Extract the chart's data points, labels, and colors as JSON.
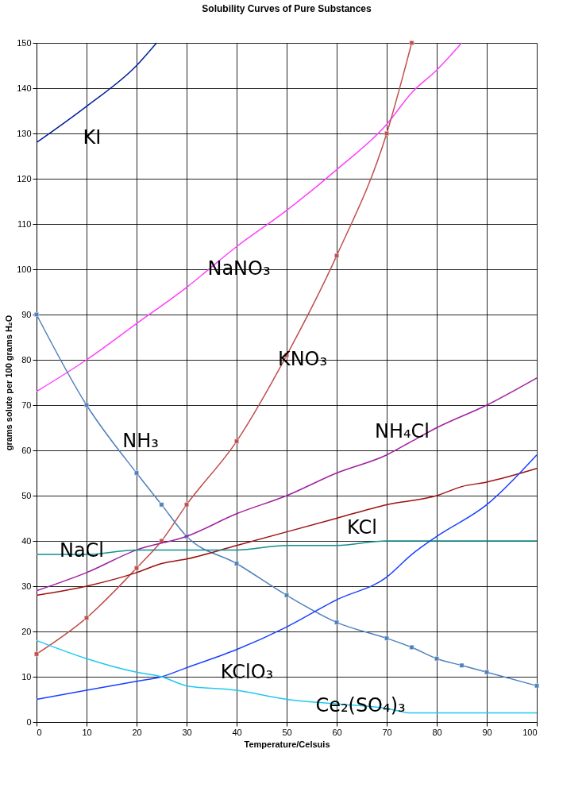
{
  "chart_data": {
    "type": "line",
    "title": "Solubility Curves of Pure Substances",
    "xlabel": "Temperature/Celsuis",
    "ylabel": "grams solute per 100 grams H₂O",
    "xlim": [
      0,
      100
    ],
    "xticks": [
      0,
      10,
      20,
      30,
      40,
      50,
      60,
      70,
      80,
      90,
      100
    ],
    "ylim": [
      0,
      150
    ],
    "yticks": [
      0,
      10,
      20,
      30,
      40,
      50,
      60,
      70,
      80,
      90,
      100,
      110,
      120,
      130,
      140,
      150
    ],
    "grid": true,
    "line_style": "solid",
    "series": [
      {
        "name": "KI",
        "color": "#00209f",
        "marker": "none",
        "x": [
          0,
          10,
          20,
          24
        ],
        "values": [
          128,
          136,
          145,
          150
        ]
      },
      {
        "name": "NaNO₃",
        "color": "#ff40ff",
        "marker": "none",
        "x": [
          0,
          10,
          20,
          30,
          40,
          50,
          60,
          70,
          75,
          80,
          85
        ],
        "values": [
          73,
          80,
          88,
          96,
          105,
          113,
          122,
          132,
          139,
          144,
          150
        ]
      },
      {
        "name": "KNO₃",
        "color": "#c0504d",
        "marker": "square",
        "x": [
          0,
          10,
          20,
          25,
          30,
          40,
          50,
          60,
          70,
          75
        ],
        "values": [
          15,
          23,
          34,
          40,
          48,
          62,
          81,
          103,
          130,
          150
        ]
      },
      {
        "name": "NH₃",
        "color": "#4f81bd",
        "marker": "square",
        "x": [
          0,
          10,
          20,
          25,
          30,
          40,
          50,
          60,
          70,
          75,
          80,
          85,
          90,
          100
        ],
        "values": [
          90,
          70,
          55,
          48,
          41,
          35,
          28,
          22,
          18.5,
          16.5,
          14,
          12.5,
          11,
          8
        ]
      },
      {
        "name": "NH₄Cl",
        "color": "#a020a0",
        "marker": "none",
        "x": [
          0,
          10,
          20,
          30,
          40,
          50,
          60,
          70,
          75,
          80,
          90,
          100
        ],
        "values": [
          29,
          33,
          38,
          41,
          46,
          50,
          55,
          59,
          62,
          65,
          70,
          76
        ]
      },
      {
        "name": "KCl",
        "color": "#a01010",
        "marker": "none",
        "x": [
          0,
          10,
          20,
          25,
          30,
          40,
          50,
          60,
          70,
          80,
          85,
          90,
          100
        ],
        "values": [
          28,
          30,
          33,
          35,
          36,
          39,
          42,
          45,
          48,
          50,
          52,
          53,
          56
        ]
      },
      {
        "name": "NaCl",
        "color": "#10908f",
        "marker": "none",
        "x": [
          0,
          10,
          20,
          30,
          40,
          50,
          60,
          70,
          80,
          90,
          100
        ],
        "values": [
          37,
          37,
          38,
          38,
          38,
          39,
          39,
          40,
          40,
          40,
          40
        ]
      },
      {
        "name": "KClO₃",
        "color": "#1a40ff",
        "marker": "none",
        "x": [
          0,
          10,
          20,
          25,
          30,
          40,
          50,
          60,
          70,
          75,
          80,
          90,
          100
        ],
        "values": [
          5,
          7,
          9,
          10,
          12,
          16,
          21,
          27,
          32,
          37,
          41,
          48,
          59
        ]
      },
      {
        "name": "Ce₂(SO₄)₃",
        "color": "#20c8f0",
        "marker": "none",
        "x": [
          0,
          10,
          20,
          25,
          30,
          40,
          50,
          60,
          70,
          75,
          80,
          100
        ],
        "values": [
          18,
          14,
          11,
          10,
          8,
          7,
          5,
          4,
          3,
          2,
          2,
          2
        ]
      }
    ]
  }
}
